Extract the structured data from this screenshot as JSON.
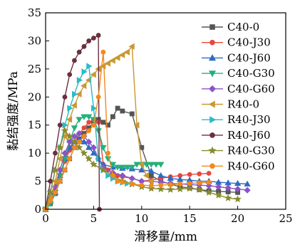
{
  "chart_data": {
    "type": "line",
    "title": "",
    "xlabel": "滑移量/mm",
    "ylabel": "黏结强度/MPa",
    "xlim": [
      0,
      25
    ],
    "ylim": [
      0,
      35
    ],
    "xticks": [
      "0",
      "5",
      "10",
      "15",
      "20",
      "25"
    ],
    "yticks": [
      "0",
      "5",
      "10",
      "15",
      "20",
      "25",
      "30",
      "35"
    ],
    "grid": false,
    "legend_position": "right",
    "series": [
      {
        "name": "C40-0",
        "color": "#555555",
        "marker": "square",
        "x": [
          0,
          0.5,
          1,
          1.5,
          2,
          2.5,
          3,
          3.5,
          4,
          4.5,
          5,
          5.5,
          6,
          6.5,
          7,
          7.5,
          8,
          9,
          10,
          11,
          12,
          13,
          14,
          15,
          16,
          17,
          18,
          19,
          20
        ],
        "y": [
          0,
          1,
          2.8,
          5,
          7,
          9,
          11,
          12.5,
          13.5,
          14.5,
          15.5,
          16,
          15.5,
          15,
          16.5,
          18,
          17.5,
          17,
          11,
          6,
          5,
          4.5,
          4,
          3.8,
          3.5,
          3.3,
          3.2,
          3.1,
          3
        ]
      },
      {
        "name": "C40-J30",
        "color": "#e8473a",
        "marker": "circle",
        "x": [
          0,
          0.5,
          1,
          1.5,
          2,
          2.5,
          3,
          3.5,
          4,
          4.5,
          5,
          5.5,
          6,
          6.5,
          7,
          7.5,
          8,
          9,
          10,
          11,
          12,
          13,
          14,
          15,
          16,
          17
        ],
        "y": [
          0,
          1.5,
          3.5,
          6,
          8.5,
          10.5,
          12,
          13.5,
          14.5,
          15.5,
          16,
          15.5,
          8,
          7,
          6.5,
          6,
          5.8,
          5.5,
          5,
          5.2,
          5.5,
          5.8,
          6,
          6.2,
          6.3,
          6.4
        ]
      },
      {
        "name": "C40-J60",
        "color": "#2e6bc2",
        "marker": "triangle-up",
        "x": [
          0,
          0.5,
          1,
          1.5,
          2,
          2.5,
          3,
          3.5,
          4,
          4.5,
          5,
          6,
          7,
          8,
          9,
          10,
          11,
          12,
          13,
          14,
          15,
          16,
          17,
          18,
          19,
          20,
          21
        ],
        "y": [
          0,
          1.5,
          3,
          6,
          9,
          11,
          12,
          12.5,
          12,
          11,
          10,
          8,
          7.5,
          7.3,
          7.2,
          7,
          6.8,
          6,
          5.5,
          5.3,
          5.2,
          5,
          5,
          4.8,
          4.7,
          4.6,
          4.5
        ]
      },
      {
        "name": "C40-G30",
        "color": "#23b07a",
        "marker": "triangle-down",
        "x": [
          0,
          0.5,
          1,
          1.5,
          2,
          2.5,
          3,
          3.5,
          4,
          4.5,
          5,
          5.5,
          6,
          6.5,
          7,
          7.5,
          8,
          8.5,
          9,
          9.5,
          10,
          10.5,
          11,
          11.5,
          12
        ],
        "y": [
          0,
          1,
          3,
          6,
          9,
          12,
          14.5,
          16,
          16.5,
          16.5,
          16,
          14,
          11,
          9,
          8,
          7.5,
          7.5,
          7.5,
          7.5,
          8,
          8,
          8,
          8,
          8,
          8
        ]
      },
      {
        "name": "C40-G60",
        "color": "#8a54c8",
        "marker": "diamond",
        "x": [
          0,
          0.5,
          1,
          1.5,
          2,
          2.5,
          3,
          3.5,
          4,
          4.5,
          5,
          5.5,
          6,
          7,
          8,
          9,
          10,
          11,
          12,
          13,
          14,
          15,
          16,
          17,
          18,
          19,
          20,
          21
        ],
        "y": [
          0,
          2,
          4,
          7,
          10,
          12,
          13,
          13.5,
          13,
          12,
          11,
          9,
          7.5,
          6.5,
          6,
          5.5,
          5,
          5,
          4.8,
          4.6,
          4.5,
          4.4,
          4.3,
          4.2,
          4,
          3.8,
          3.6,
          3.4
        ]
      },
      {
        "name": "R40-0",
        "color": "#c99832",
        "marker": "triangle-left",
        "x": [
          0,
          0.5,
          1,
          1.5,
          2,
          2.5,
          3,
          3.5,
          4,
          4.5,
          5,
          5.5,
          6,
          6.5,
          7,
          7.5,
          8,
          8.5,
          9,
          9.5,
          10,
          10.5,
          11
        ],
        "y": [
          0,
          2,
          5,
          9,
          13,
          16,
          18.5,
          20.5,
          22,
          23,
          24,
          25,
          25.5,
          26,
          26.5,
          27,
          27.5,
          28,
          29,
          15,
          8,
          6,
          5
        ]
      },
      {
        "name": "R40-J30",
        "color": "#2bbac6",
        "marker": "triangle-right",
        "x": [
          0,
          0.5,
          1,
          1.5,
          2,
          2.5,
          3,
          3.5,
          4,
          4.5,
          5,
          5.5,
          6,
          6.5,
          7,
          7.5,
          8,
          8.5,
          9
        ],
        "y": [
          0,
          3,
          7,
          11,
          15,
          18,
          20.5,
          23,
          24.5,
          25.5,
          18,
          9,
          7,
          6,
          5.5,
          5,
          4.8,
          4.6,
          4.5
        ]
      },
      {
        "name": "R40-J60",
        "color": "#6b2f3d",
        "marker": "circle",
        "x": [
          0,
          0.5,
          1,
          1.5,
          2,
          2.5,
          3,
          3.5,
          4,
          4.5,
          5,
          5.5,
          5.6
        ],
        "y": [
          0,
          5,
          10,
          15,
          20,
          24,
          26.5,
          28,
          29,
          30,
          30.5,
          31,
          0
        ]
      },
      {
        "name": "R40-G30",
        "color": "#888a2f",
        "marker": "star",
        "x": [
          0,
          0.5,
          1,
          1.5,
          2,
          2.5,
          3,
          3.5,
          4,
          4.5,
          5,
          6,
          7,
          8,
          9,
          10,
          11,
          12,
          13,
          14,
          15,
          16,
          17,
          18,
          19,
          20
        ],
        "y": [
          0,
          3,
          7,
          11,
          14,
          13,
          12,
          11,
          10,
          9,
          8,
          7,
          6,
          5,
          4.5,
          4,
          3.7,
          3.6,
          3.5,
          3.6,
          3.7,
          3.5,
          3,
          2.5,
          2,
          1.8
        ]
      },
      {
        "name": "R40-G60",
        "color": "#f08a1e",
        "marker": "circle",
        "x": [
          0,
          0.5,
          1,
          1.5,
          2,
          2.5,
          3,
          3.5,
          4,
          4.5,
          5,
          5.5,
          6,
          6.5,
          7,
          7.5,
          8,
          9,
          10,
          11,
          12,
          13,
          14,
          15,
          16,
          17
        ],
        "y": [
          0,
          1.5,
          3,
          5,
          7,
          9,
          11,
          12,
          13,
          14,
          15,
          20,
          28,
          10,
          6,
          5,
          4.8,
          4.5,
          4.3,
          4.2,
          4.3,
          4.4,
          4.5,
          4.6,
          4.7,
          4.8
        ]
      }
    ]
  }
}
